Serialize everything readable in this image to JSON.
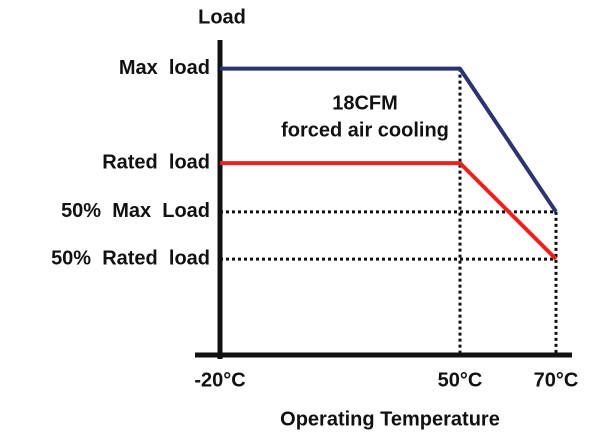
{
  "chart_data": {
    "type": "line",
    "y_label": "Load",
    "x_label": "Operating Temperature",
    "categories": [
      "-20°C",
      "50°C",
      "70°C"
    ],
    "series": [
      {
        "color": "#2b3470",
        "values": [
          100,
          100,
          50
        ]
      },
      {
        "color": "#e8231f",
        "values": [
          67,
          67,
          33.5
        ]
      }
    ],
    "ylim": [
      0,
      110
    ],
    "yticks": [
      {
        "value": 100,
        "label": "Max  load"
      },
      {
        "value": 67,
        "label": "Rated  load"
      },
      {
        "value": 50,
        "label": "50%  Max  Load"
      },
      {
        "value": 33.5,
        "label": "50%  Rated  load"
      }
    ],
    "annotations": [
      "18CFM",
      "forced air cooling"
    ]
  }
}
